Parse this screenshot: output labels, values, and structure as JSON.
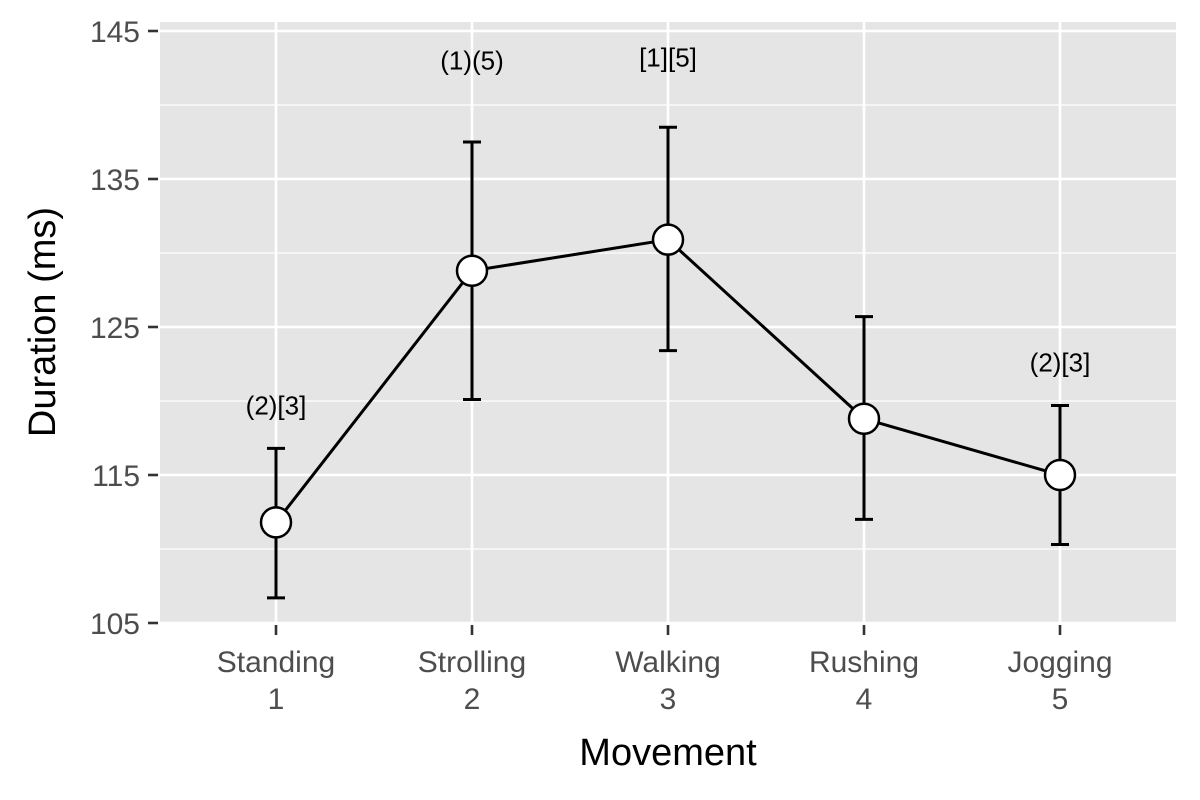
{
  "chart_data": {
    "type": "line",
    "xlabel": "Movement",
    "ylabel": "Duration (ms)",
    "ylim": [
      105,
      145
    ],
    "yticks": [
      105,
      115,
      125,
      135,
      145
    ],
    "grid": true,
    "categories": [
      {
        "name": "Standing",
        "index": "1"
      },
      {
        "name": "Strolling",
        "index": "2"
      },
      {
        "name": "Walking",
        "index": "3"
      },
      {
        "name": "Rushing",
        "index": "4"
      },
      {
        "name": "Jogging",
        "index": "5"
      }
    ],
    "series": [
      {
        "values": [
          111.8,
          128.8,
          130.9,
          118.8,
          115.0
        ],
        "error_low": [
          106.7,
          120.1,
          123.4,
          112.0,
          110.3
        ],
        "error_high": [
          116.8,
          137.5,
          138.5,
          125.7,
          119.7
        ]
      }
    ],
    "annotations": [
      {
        "category": 0,
        "text": "(2)[3]",
        "y": 119.7
      },
      {
        "category": 1,
        "text": "(1)(5)",
        "y": 143.0
      },
      {
        "category": 2,
        "text": "[1][5]",
        "y": 143.2
      },
      {
        "category": 4,
        "text": "(2)[3]",
        "y": 122.6
      }
    ],
    "colors": {
      "panel": "#e5e5e5",
      "grid": "#ffffff",
      "line": "#000000",
      "point_fill": "#ffffff"
    }
  }
}
